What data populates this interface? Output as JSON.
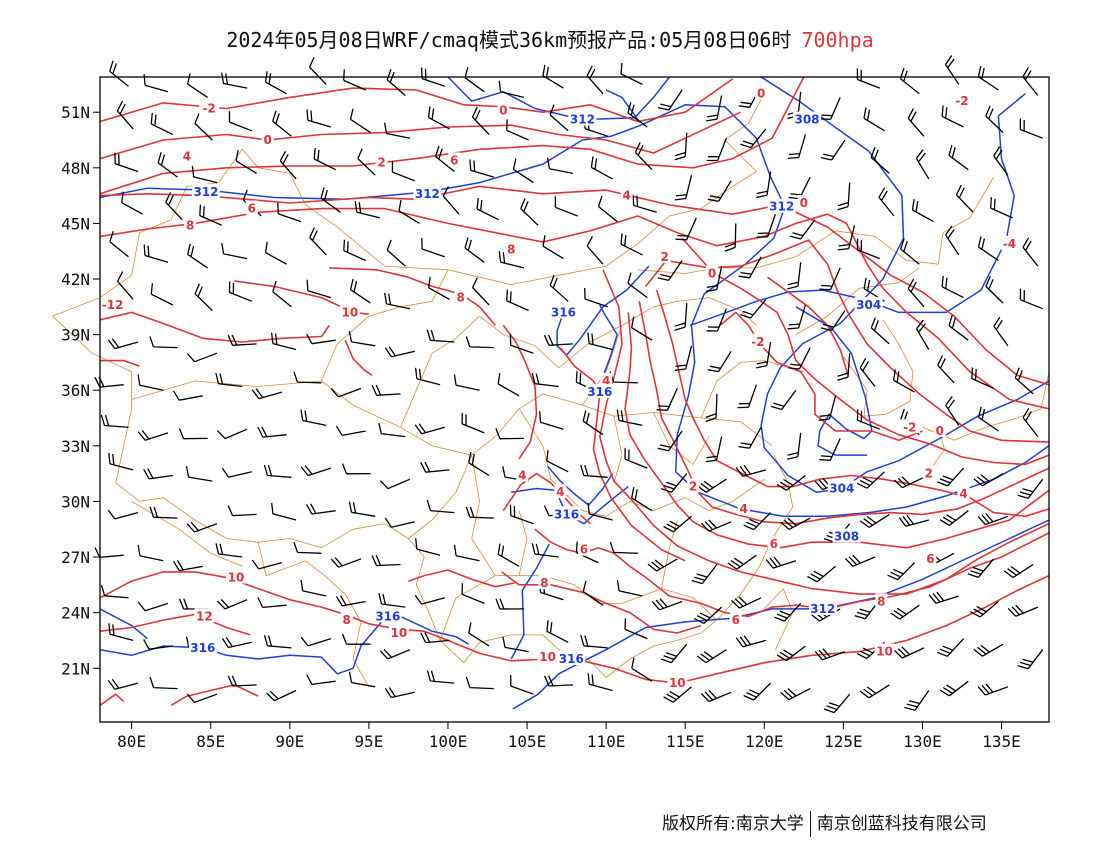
{
  "title": {
    "main": "2024年05月08日WRF/cmaq模式36km预报产品:05月08日06时",
    "level": "700hpa"
  },
  "axes": {
    "lon_ticks": [
      "80E",
      "85E",
      "90E",
      "95E",
      "100E",
      "105E",
      "110E",
      "115E",
      "120E",
      "125E",
      "130E",
      "135E"
    ],
    "lat_ticks": [
      "51N",
      "48N",
      "45N",
      "42N",
      "39N",
      "36N",
      "33N",
      "30N",
      "27N",
      "24N",
      "21N"
    ]
  },
  "colors": {
    "temperature": "#e0343a",
    "height": "#1f3fd8",
    "boundary": "#d98a3a",
    "wind": "#000000"
  },
  "map": {
    "temperature_labels": [
      {
        "text": "-2",
        "lon": 84.9,
        "lat": 51.2
      },
      {
        "text": "0",
        "lon": 88.6,
        "lat": 49.5
      },
      {
        "text": "0",
        "lon": 103.5,
        "lat": 51.1
      },
      {
        "text": "-2",
        "lon": 132.5,
        "lat": 51.6
      },
      {
        "text": "0",
        "lon": 119.8,
        "lat": 52.0
      },
      {
        "text": "4",
        "lon": 83.5,
        "lat": 48.6
      },
      {
        "text": "2",
        "lon": 95.8,
        "lat": 48.3
      },
      {
        "text": "6",
        "lon": 100.4,
        "lat": 48.4
      },
      {
        "text": "4",
        "lon": 111.3,
        "lat": 46.5
      },
      {
        "text": "0",
        "lon": 122.5,
        "lat": 46.1
      },
      {
        "text": "6",
        "lon": 87.6,
        "lat": 45.8
      },
      {
        "text": "8",
        "lon": 83.7,
        "lat": 44.9
      },
      {
        "text": "-4",
        "lon": 135.5,
        "lat": 43.9
      },
      {
        "text": "8",
        "lon": 104.0,
        "lat": 43.6
      },
      {
        "text": "2",
        "lon": 113.7,
        "lat": 43.2
      },
      {
        "text": "0",
        "lon": 116.7,
        "lat": 42.3
      },
      {
        "text": "-12",
        "lon": 78.8,
        "lat": 40.6
      },
      {
        "text": "10",
        "lon": 93.8,
        "lat": 40.2
      },
      {
        "text": "8",
        "lon": 100.8,
        "lat": 41.0
      },
      {
        "text": "-2",
        "lon": 119.6,
        "lat": 38.6
      },
      {
        "text": "4",
        "lon": 110.0,
        "lat": 36.5
      },
      {
        "text": "-2",
        "lon": 129.2,
        "lat": 34.0
      },
      {
        "text": "0",
        "lon": 131.1,
        "lat": 33.8
      },
      {
        "text": "4",
        "lon": 104.7,
        "lat": 31.4
      },
      {
        "text": "2",
        "lon": 130.4,
        "lat": 31.5
      },
      {
        "text": "2",
        "lon": 115.5,
        "lat": 30.8
      },
      {
        "text": "4",
        "lon": 107.1,
        "lat": 30.5
      },
      {
        "text": "4",
        "lon": 118.7,
        "lat": 29.6
      },
      {
        "text": "4",
        "lon": 132.6,
        "lat": 30.4
      },
      {
        "text": "6",
        "lon": 108.6,
        "lat": 27.4
      },
      {
        "text": "6",
        "lon": 120.6,
        "lat": 27.7
      },
      {
        "text": "6",
        "lon": 130.5,
        "lat": 26.9
      },
      {
        "text": "10",
        "lon": 86.6,
        "lat": 25.9
      },
      {
        "text": "8",
        "lon": 106.1,
        "lat": 25.6
      },
      {
        "text": "12",
        "lon": 84.6,
        "lat": 23.8
      },
      {
        "text": "8",
        "lon": 93.6,
        "lat": 23.6
      },
      {
        "text": "10",
        "lon": 96.9,
        "lat": 22.9
      },
      {
        "text": "8",
        "lon": 127.4,
        "lat": 24.6
      },
      {
        "text": "6",
        "lon": 118.2,
        "lat": 23.6
      },
      {
        "text": "10",
        "lon": 106.3,
        "lat": 21.6
      },
      {
        "text": "10",
        "lon": 127.6,
        "lat": 21.9
      },
      {
        "text": "10",
        "lon": 114.5,
        "lat": 20.2
      }
    ],
    "height_labels": [
      {
        "text": "312",
        "lon": 108.5,
        "lat": 50.6
      },
      {
        "text": "308",
        "lon": 122.7,
        "lat": 50.6
      },
      {
        "text": "312",
        "lon": 84.7,
        "lat": 46.7
      },
      {
        "text": "312",
        "lon": 98.7,
        "lat": 46.6
      },
      {
        "text": "312",
        "lon": 121.1,
        "lat": 45.9
      },
      {
        "text": "316",
        "lon": 107.3,
        "lat": 40.2
      },
      {
        "text": "304",
        "lon": 126.6,
        "lat": 40.6
      },
      {
        "text": "316",
        "lon": 109.6,
        "lat": 35.9
      },
      {
        "text": "304",
        "lon": 124.9,
        "lat": 30.7
      },
      {
        "text": "316",
        "lon": 107.5,
        "lat": 29.3
      },
      {
        "text": "308",
        "lon": 125.2,
        "lat": 28.1
      },
      {
        "text": "316",
        "lon": 96.2,
        "lat": 23.8
      },
      {
        "text": "312",
        "lon": 123.7,
        "lat": 24.2
      },
      {
        "text": "316",
        "lon": 84.5,
        "lat": 22.1
      },
      {
        "text": "316",
        "lon": 107.8,
        "lat": 21.5
      }
    ]
  }
}
